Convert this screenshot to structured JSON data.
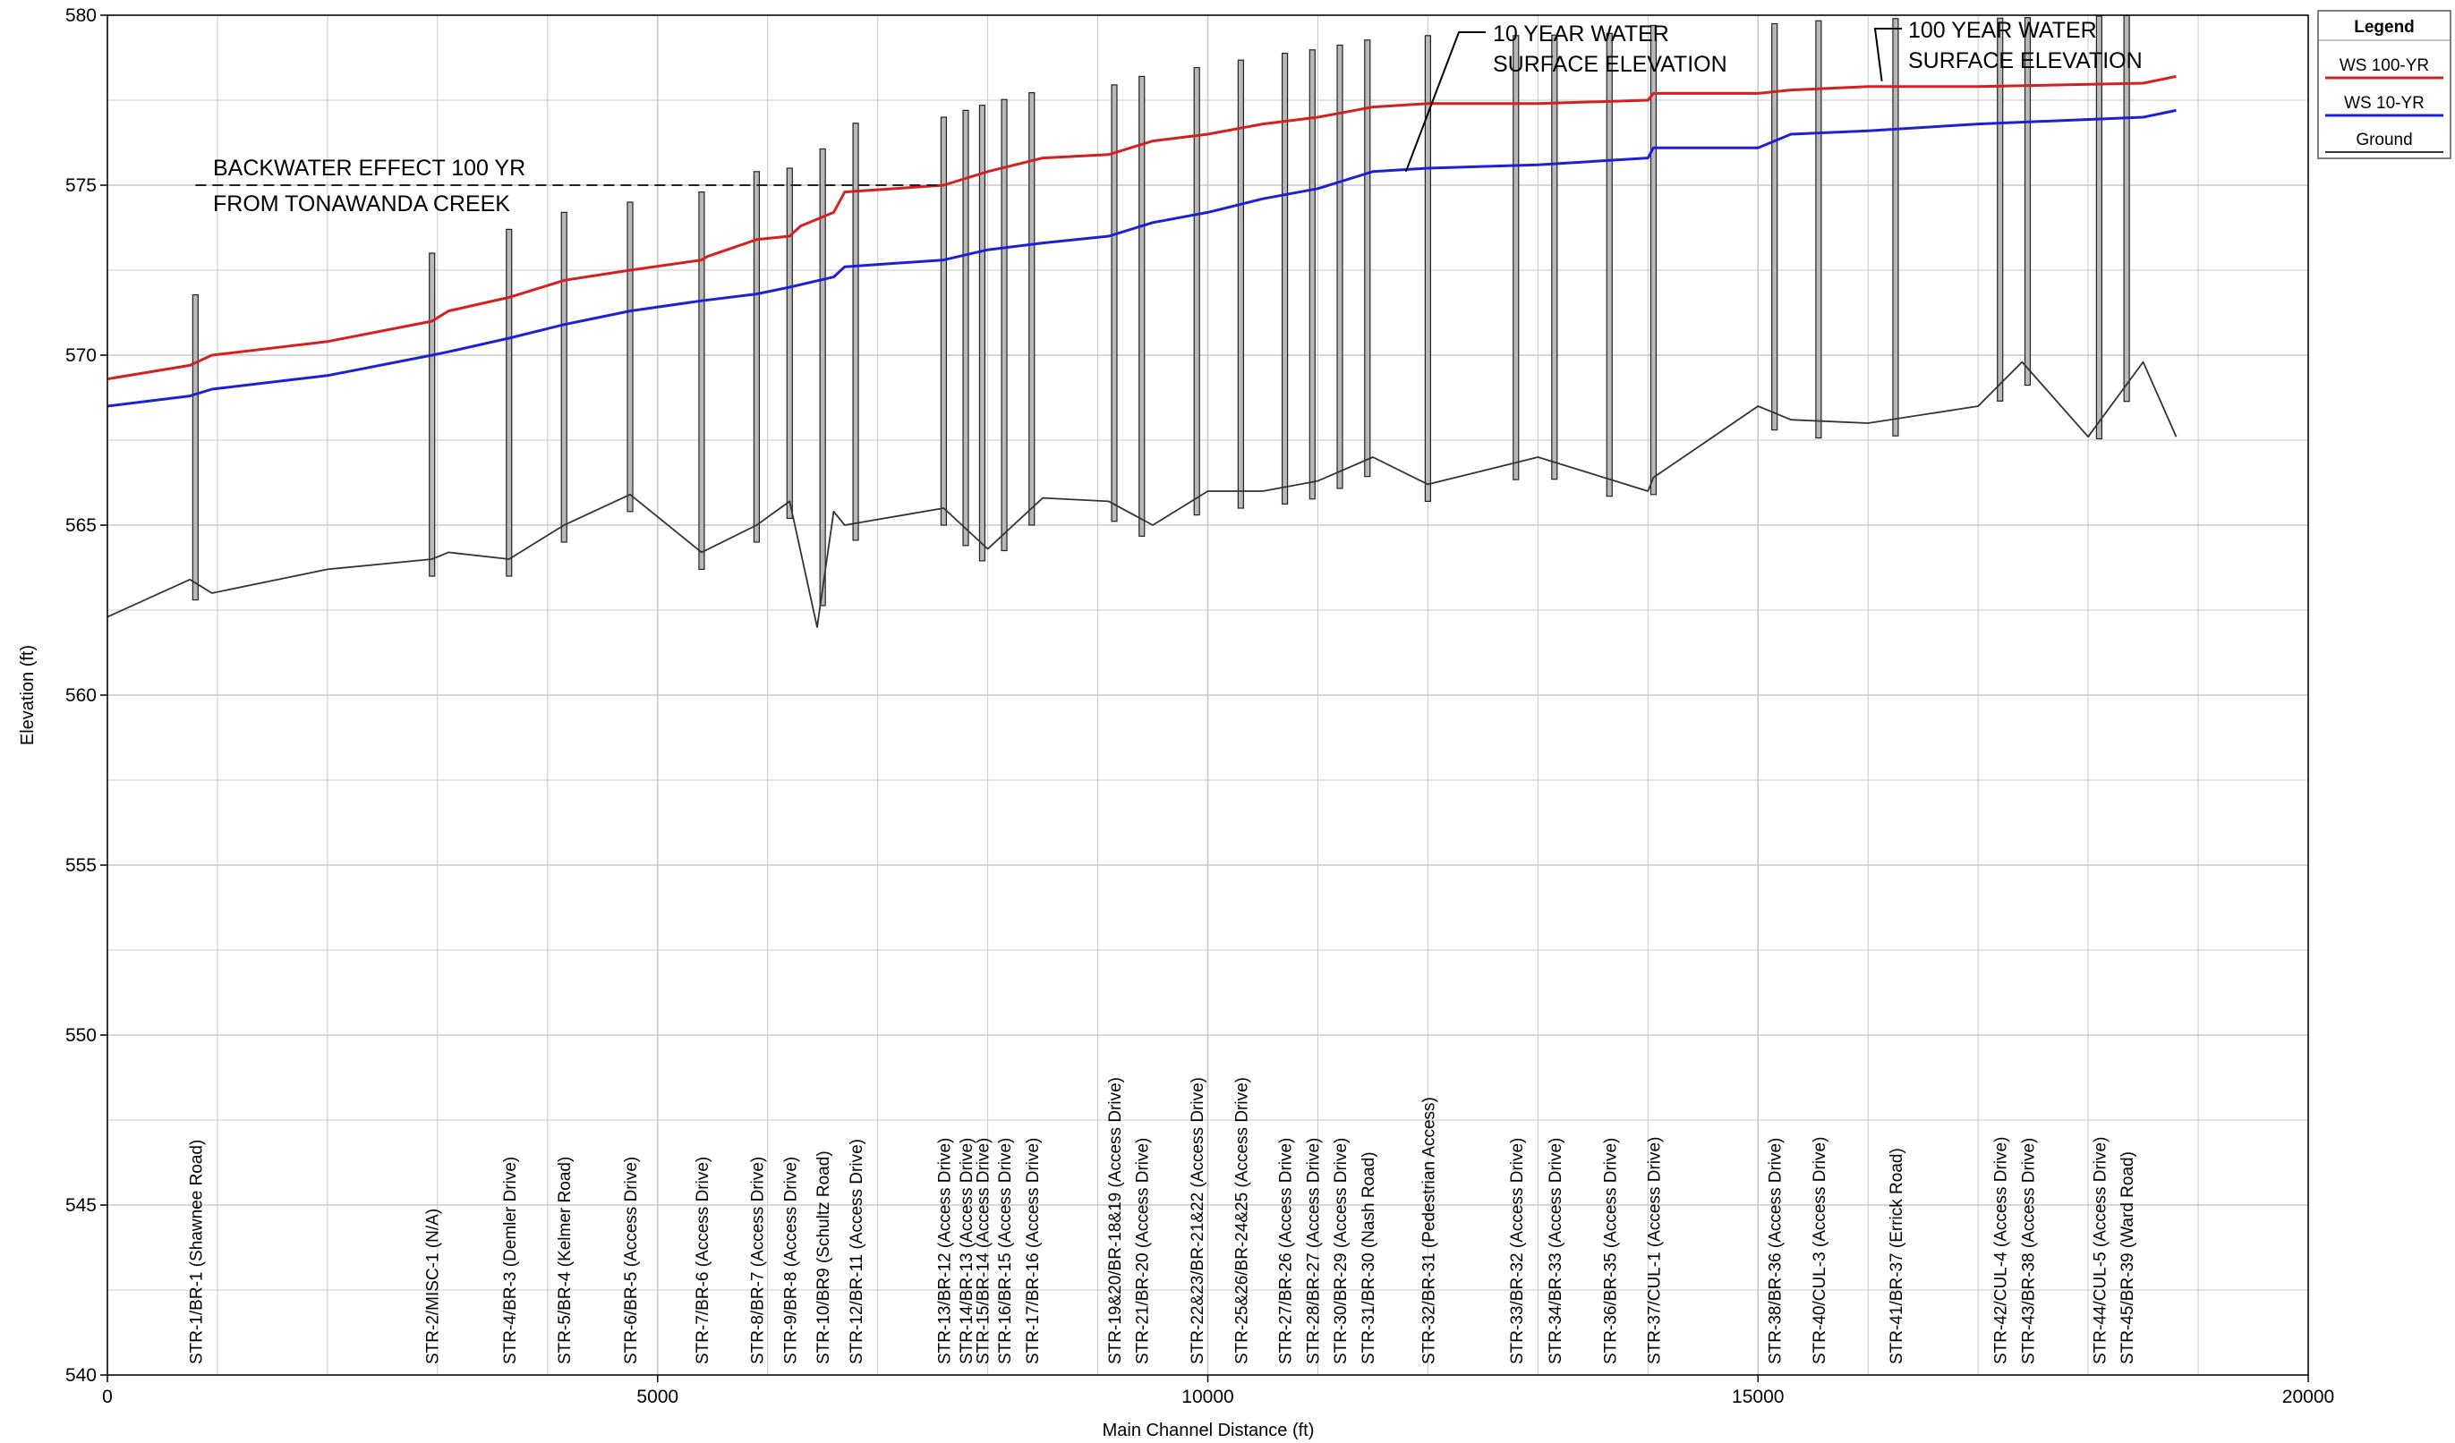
{
  "chart_data": {
    "type": "line",
    "title": "",
    "xlabel": "Main Channel Distance (ft)",
    "ylabel": "Elevation (ft)",
    "xlim": [
      0,
      20000
    ],
    "ylim": [
      540,
      580
    ],
    "x_ticks": [
      0,
      5000,
      10000,
      15000,
      20000
    ],
    "y_ticks": [
      540,
      545,
      550,
      555,
      560,
      565,
      570,
      575,
      580
    ],
    "grid": true,
    "legend_position": "top-right",
    "legend": {
      "title": "Legend",
      "entries": [
        {
          "label": "WS  100-YR",
          "color": "#d42020"
        },
        {
          "label": "WS  10-YR",
          "color": "#1f1fd4"
        },
        {
          "label": "Ground",
          "color": "#333333"
        }
      ]
    },
    "series": [
      {
        "name": "WS  100-YR",
        "color": "#d42020",
        "x": [
          0,
          750,
          950,
          2000,
          2950,
          3100,
          3650,
          4150,
          4750,
          5400,
          5450,
          5900,
          6200,
          6300,
          6600,
          6700,
          7600,
          8000,
          8500,
          9100,
          9500,
          10000,
          10500,
          11000,
          11500,
          12000,
          13000,
          14000,
          14050,
          15000,
          15300,
          16000,
          17000,
          18500,
          18800
        ],
        "values": [
          569.3,
          569.7,
          570.0,
          570.4,
          571.0,
          571.3,
          571.7,
          572.2,
          572.5,
          572.8,
          572.9,
          573.4,
          573.5,
          573.8,
          574.2,
          574.8,
          575.0,
          575.4,
          575.8,
          575.9,
          576.3,
          576.5,
          576.8,
          577.0,
          577.3,
          577.4,
          577.4,
          577.5,
          577.7,
          577.7,
          577.8,
          577.9,
          577.9,
          578.0,
          578.2
        ]
      },
      {
        "name": "WS  10-YR",
        "color": "#1f1fd4",
        "x": [
          0,
          750,
          950,
          2000,
          2950,
          3100,
          3650,
          4150,
          4750,
          5400,
          5900,
          6200,
          6600,
          6700,
          7600,
          8000,
          8500,
          9100,
          9500,
          10000,
          10500,
          11000,
          11500,
          12000,
          13000,
          14000,
          14050,
          15000,
          15300,
          16000,
          17000,
          18500,
          18800
        ],
        "values": [
          568.5,
          568.8,
          569.0,
          569.4,
          570.0,
          570.1,
          570.5,
          570.9,
          571.3,
          571.6,
          571.8,
          572.0,
          572.3,
          572.6,
          572.8,
          573.1,
          573.3,
          573.5,
          573.9,
          574.2,
          574.6,
          574.9,
          575.4,
          575.5,
          575.6,
          575.8,
          576.1,
          576.1,
          576.5,
          576.6,
          576.8,
          577.0,
          577.2
        ]
      },
      {
        "name": "Ground",
        "color": "#333333",
        "x": [
          0,
          750,
          950,
          2000,
          2950,
          3100,
          3650,
          4150,
          4750,
          5400,
          5900,
          6200,
          6450,
          6600,
          6700,
          7600,
          8000,
          8500,
          9100,
          9500,
          10000,
          10500,
          11000,
          11500,
          12000,
          13000,
          14000,
          14050,
          15000,
          15300,
          16000,
          17000,
          17400,
          18000,
          18500,
          18800
        ],
        "values": [
          562.3,
          563.4,
          563.0,
          563.7,
          564.0,
          564.2,
          564.0,
          565.0,
          565.9,
          564.2,
          565.0,
          565.7,
          562.0,
          565.4,
          565.0,
          565.5,
          564.3,
          565.8,
          565.7,
          565.0,
          566.0,
          566.0,
          566.3,
          567.0,
          566.2,
          567.0,
          566.0,
          566.4,
          568.5,
          568.1,
          568.0,
          568.5,
          569.8,
          567.6,
          569.8,
          567.6
        ]
      }
    ],
    "structures": [
      {
        "x": 800,
        "label": "STR-1/BR-1 (Shawnee Road)"
      },
      {
        "x": 2950,
        "label": "STR-2/MISC-1 (N/A)"
      },
      {
        "x": 3650,
        "label": "STR-4/BR-3 (Demler Drive)"
      },
      {
        "x": 4150,
        "label": "STR-5/BR-4 (Kelmer Road)"
      },
      {
        "x": 4750,
        "label": "STR-6/BR-5 (Access Drive)"
      },
      {
        "x": 5400,
        "label": "STR-7/BR-6 (Access Drive)"
      },
      {
        "x": 5900,
        "label": "STR-8/BR-7 (Access Drive)"
      },
      {
        "x": 6200,
        "label": "STR-9/BR-8 (Access Drive)"
      },
      {
        "x": 6500,
        "label": "STR-10/BR9 (Schultz Road)"
      },
      {
        "x": 6800,
        "label": "STR-12/BR-11 (Access Drive)"
      },
      {
        "x": 7600,
        "label": "STR-13/BR-12 (Access Drive)"
      },
      {
        "x": 7800,
        "label": "STR-14/BR-13 (Access Drive)"
      },
      {
        "x": 7950,
        "label": "STR-15/BR-14 (Access Drive)"
      },
      {
        "x": 8150,
        "label": "STR-16/BR-15 (Access Drive)"
      },
      {
        "x": 8400,
        "label": "STR-17/BR-16 (Access Drive)"
      },
      {
        "x": 9150,
        "label": "STR-19&20/BR-18&19 (Access Drive)"
      },
      {
        "x": 9400,
        "label": "STR-21/BR-20 (Access Drive)"
      },
      {
        "x": 9900,
        "label": "STR-22&23/BR-21&22 (Access Drive)"
      },
      {
        "x": 10300,
        "label": "STR-25&26/BR-24&25 (Access Drive)"
      },
      {
        "x": 10700,
        "label": "STR-27/BR-26 (Access Drive)"
      },
      {
        "x": 10950,
        "label": "STR-28/BR-27 (Access Drive)"
      },
      {
        "x": 11200,
        "label": "STR-30/BR-29 (Access Drive)"
      },
      {
        "x": 11450,
        "label": "STR-31/BR-30 (Nash Road)"
      },
      {
        "x": 12000,
        "label": "STR-32/BR-31 (Pedestrian Access)"
      },
      {
        "x": 12800,
        "label": "STR-33/BR-32 (Access Drive)"
      },
      {
        "x": 13150,
        "label": "STR-34/BR-33 (Access Drive)"
      },
      {
        "x": 13650,
        "label": "STR-36/BR-35 (Access Drive)"
      },
      {
        "x": 14050,
        "label": "STR-37/CUL-1 (Access Drive)"
      },
      {
        "x": 15150,
        "label": "STR-38/BR-36 (Access Drive)"
      },
      {
        "x": 15550,
        "label": "STR-40/CUL-3 (Access Drive)"
      },
      {
        "x": 16250,
        "label": "STR-41/BR-37 (Errick Road)"
      },
      {
        "x": 17200,
        "label": "STR-42/CUL-4 (Access Drive)"
      },
      {
        "x": 17450,
        "label": "STR-43/BR-38 (Access Drive)"
      },
      {
        "x": 18100,
        "label": "STR-44/CUL-5 (Access Drive)"
      },
      {
        "x": 18350,
        "label": "STR-45/BR-39 (Ward Road)"
      }
    ],
    "annotations": {
      "backwater": {
        "lines": [
          "BACKWATER EFFECT 100 YR",
          "FROM TONAWANDA CREEK"
        ],
        "elevation": 575.0,
        "x_end": 7600
      },
      "ten_year": {
        "lines": [
          "10 YEAR WATER",
          "SURFACE ELEVATION"
        ],
        "points_to_x": 11800,
        "points_to_y": 575.4
      },
      "hundred_year": {
        "lines": [
          "100 YEAR WATER",
          "SURFACE ELEVATION"
        ],
        "points_to_x": 15800,
        "points_to_y": 577.9
      }
    }
  }
}
